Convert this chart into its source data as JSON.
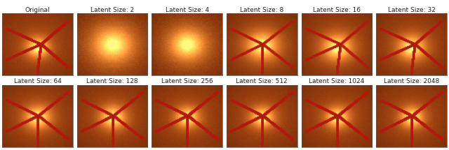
{
  "labels_row1": [
    "Original",
    "Latent Size: 2",
    "Latent Size: 4",
    "Latent Size: 8",
    "Latent Size: 16",
    "Latent Size: 32"
  ],
  "labels_row2": [
    "Latent Size: 64",
    "Latent Size: 128",
    "Latent Size: 256",
    "Latent Size: 512",
    "Latent Size: 1024",
    "Latent Size: 2048"
  ],
  "n_cols": 6,
  "n_rows": 2,
  "bg_color": "#ffffff",
  "label_fontsize": 6.5,
  "label_color": "#222222",
  "image_border_color": "#555555",
  "image_border_lw": 0.5
}
